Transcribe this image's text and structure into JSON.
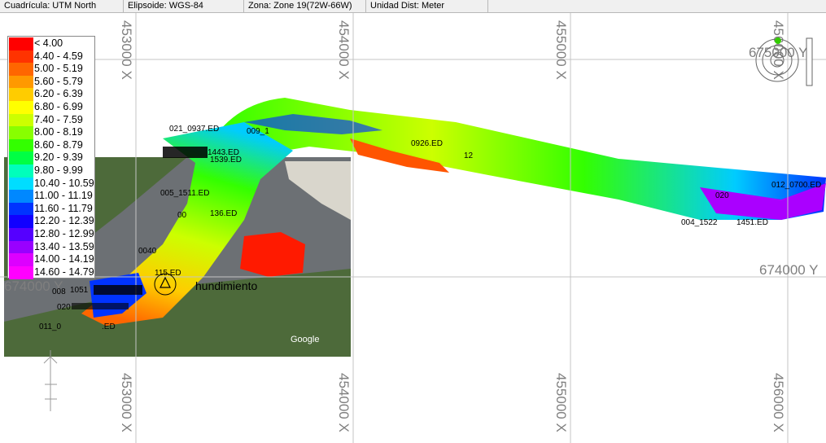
{
  "status_bar": {
    "grid": "Cuadrícula: UTM North",
    "ellipsoid": "Elipsoide: WGS-84",
    "zone": "Zona: Zone 19(72W-66W)",
    "units": "Unidad Dist: Meter"
  },
  "legend": {
    "items": [
      {
        "label": "< 4.00",
        "color": "#ff0000"
      },
      {
        "label": "4.40 - 4.59",
        "color": "#ff3300"
      },
      {
        "label": "5.00 - 5.19",
        "color": "#ff6600"
      },
      {
        "label": "5.60 - 5.79",
        "color": "#ff9900"
      },
      {
        "label": "6.20 - 6.39",
        "color": "#ffcc00"
      },
      {
        "label": "6.80 - 6.99",
        "color": "#ffff00"
      },
      {
        "label": "7.40 - 7.59",
        "color": "#ccff00"
      },
      {
        "label": "8.00 - 8.19",
        "color": "#88ff00"
      },
      {
        "label": "8.60 - 8.79",
        "color": "#33ff00"
      },
      {
        "label": "9.20 - 9.39",
        "color": "#00ff44"
      },
      {
        "label": "9.80 - 9.99",
        "color": "#00ffbb"
      },
      {
        "label": "10.40 - 10.59",
        "color": "#00ddff"
      },
      {
        "label": "11.00 - 11.19",
        "color": "#0088ff"
      },
      {
        "label": "11.60 - 11.79",
        "color": "#0033ff"
      },
      {
        "label": "12.20 - 12.39",
        "color": "#1100ff"
      },
      {
        "label": "12.80 - 12.99",
        "color": "#5500ff"
      },
      {
        "label": "13.40 - 13.59",
        "color": "#9900ff"
      },
      {
        "label": "14.00 - 14.19",
        "color": "#dd00ff"
      },
      {
        "label": "14.60 - 14.79",
        "color": "#ff00ff"
      }
    ]
  },
  "grid": {
    "x_labels": [
      "453000 X",
      "454000 X",
      "455000 X",
      "456000 X"
    ],
    "y_labels": [
      "674000 Y",
      "675000 Y"
    ]
  },
  "survey_labels": {
    "line_021": "021_0937.ED",
    "line_009": "009_1",
    "line_0926": "0926.ED",
    "line_005": "005_1511.ED",
    "line_1539": "1539.ED",
    "line_1443": "1443.ED",
    "line_12": "12",
    "line_136": "136.ED",
    "line_012": "012_0700.ED",
    "line_020": "020",
    "line_004": "004_1522",
    "line_004b": "1451.ED",
    "line_011": "011_0",
    "line_011b": ".ED",
    "line_00": "00",
    "line_0040": "0040",
    "line_115": "115.ED",
    "line_1051": "1051",
    "line_008": "008",
    "line_020b": "020",
    "hundimiento": "hundimiento",
    "google": "Google"
  },
  "colors": {
    "water": "#6c7074",
    "land": "#4d6a3a",
    "sand": "#d9d6cc",
    "grid_line": "#c4c4c4",
    "grid_text": "#7f7f7f"
  }
}
